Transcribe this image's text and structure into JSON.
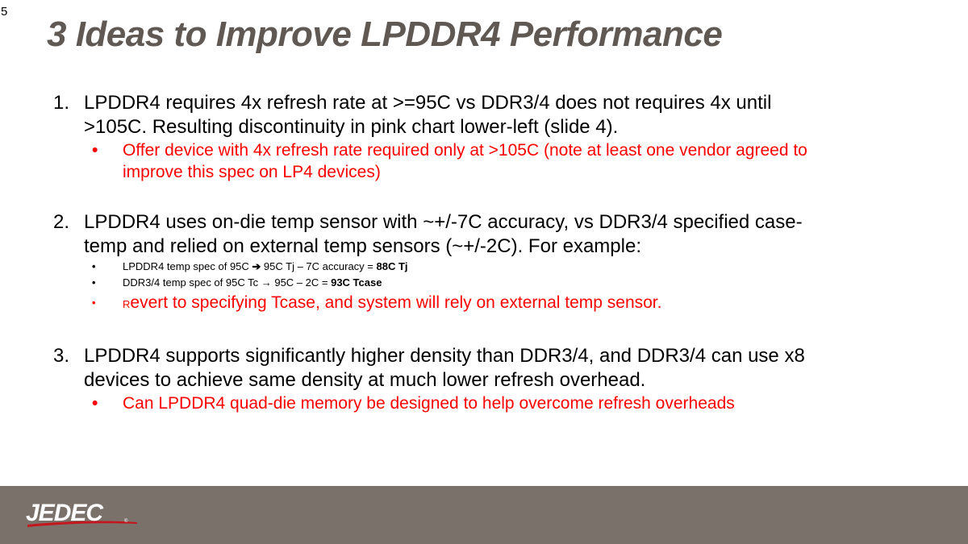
{
  "slide_number": "5",
  "title": "3 Ideas to Improve LPDDR4 Performance",
  "items": [
    {
      "number": "1.",
      "text": "LPDDR4 requires 4x refresh rate at >=95C vs DDR3/4 does not requires 4x until >105C.  Resulting discontinuity in pink chart lower-left (slide 4).",
      "bullets": [
        "Offer device with 4x refresh rate required only at >105C  (note at least one vendor agreed to improve this spec on LP4 devices)"
      ]
    },
    {
      "number": "2.",
      "text": "LPDDR4 uses on-die temp sensor with ~+/-7C accuracy, vs DDR3/4 specified case-temp and relied on external temp sensors (~+/-2C).  For example:",
      "sub_bullets": [
        {
          "pre": "LPDDR4 temp spec of 95C ",
          "arrow": "➔",
          "post": " 95C Tj – 7C accuracy = ",
          "bold": "88C Tj"
        },
        {
          "pre": "DDR3/4 temp spec of 95C Tc ",
          "arrow": "→",
          "post": " 95C – 2C = ",
          "bold": "93C Tcase"
        }
      ],
      "red_bullet": {
        "lead": "R",
        "rest": "evert to specifying Tcase, and system will rely on external temp sensor."
      }
    },
    {
      "number": "3.",
      "text": "LPDDR4 supports significantly higher density than DDR3/4, and DDR3/4 can use x8 devices to achieve same density at much lower refresh overhead.",
      "bullets": [
        "Can LPDDR4 quad-die memory be designed to help overcome refresh overheads"
      ]
    }
  ],
  "bullet_glyph": "•",
  "footer": {
    "logo_text": "JEDEC",
    "logo_mark": "®",
    "background": "#7a716b"
  }
}
